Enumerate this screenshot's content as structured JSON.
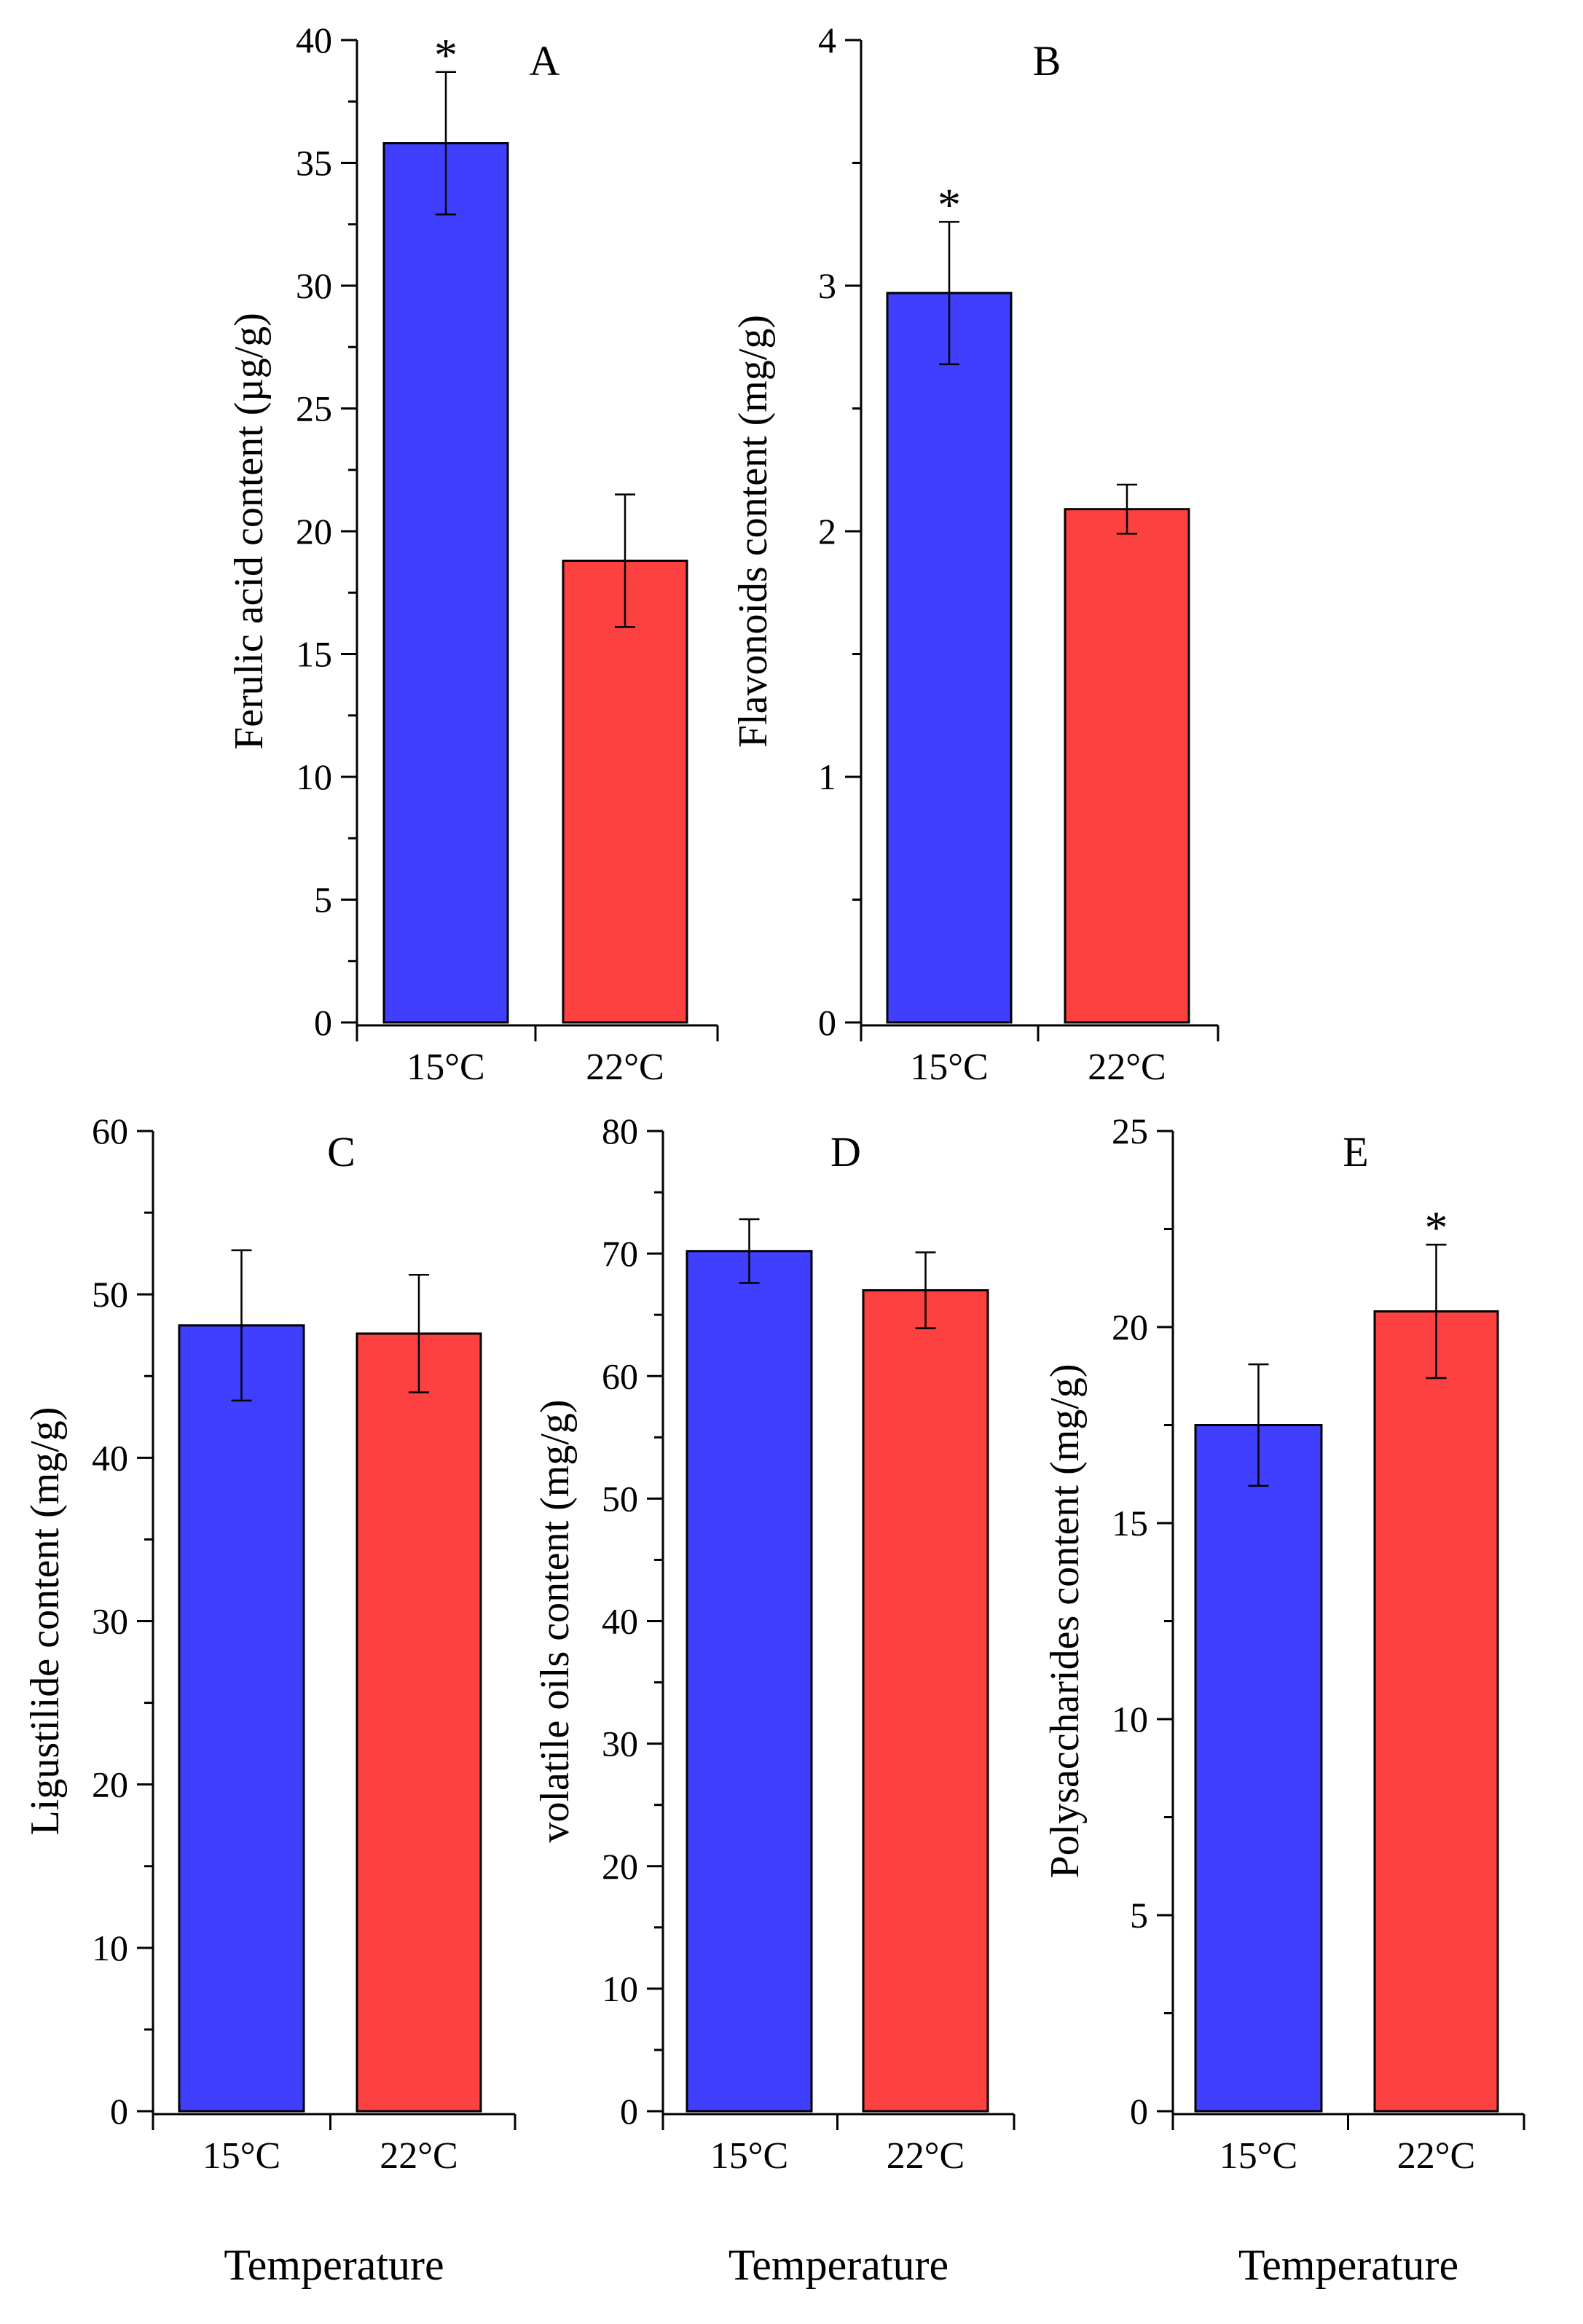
{
  "chart_data": [
    {
      "type": "bar",
      "panel": "A",
      "categories": [
        "15°C",
        "22°C"
      ],
      "values": [
        35.8,
        18.8
      ],
      "errors": [
        2.9,
        2.7
      ],
      "significance": [
        "*",
        ""
      ],
      "colors": [
        "#3f3ffd",
        "#fd4040"
      ],
      "ylabel": "Ferulic acid content (µg/g)",
      "xlabel": "",
      "ylim": [
        0,
        40
      ],
      "yticks": [
        0,
        5,
        10,
        15,
        20,
        25,
        30,
        35,
        40
      ]
    },
    {
      "type": "bar",
      "panel": "B",
      "categories": [
        "15°C",
        "22°C"
      ],
      "values": [
        2.97,
        2.09
      ],
      "errors": [
        0.29,
        0.1
      ],
      "significance": [
        "*",
        ""
      ],
      "colors": [
        "#3f3ffd",
        "#fd4040"
      ],
      "ylabel": "Flavonoids content (mg/g)",
      "xlabel": "",
      "ylim": [
        0,
        4
      ],
      "yticks": [
        0,
        1,
        2,
        3,
        4
      ]
    },
    {
      "type": "bar",
      "panel": "C",
      "categories": [
        "15°C",
        "22°C"
      ],
      "values": [
        48.1,
        47.6
      ],
      "errors": [
        4.6,
        3.6
      ],
      "significance": [
        "",
        ""
      ],
      "colors": [
        "#3f3ffd",
        "#fd4040"
      ],
      "ylabel": "Ligustilide content (mg/g)",
      "xlabel": "Temperature",
      "ylim": [
        0,
        60
      ],
      "yticks": [
        0,
        10,
        20,
        30,
        40,
        50,
        60
      ]
    },
    {
      "type": "bar",
      "panel": "D",
      "categories": [
        "15°C",
        "22°C"
      ],
      "values": [
        70.2,
        67.0
      ],
      "errors": [
        2.6,
        3.1
      ],
      "significance": [
        "",
        ""
      ],
      "colors": [
        "#3f3ffd",
        "#fd4040"
      ],
      "ylabel": "volatile oils content (mg/g)",
      "xlabel": "Temperature",
      "ylim": [
        0,
        80
      ],
      "yticks": [
        0,
        10,
        20,
        30,
        40,
        50,
        60,
        70,
        80
      ]
    },
    {
      "type": "bar",
      "panel": "E",
      "categories": [
        "15°C",
        "22°C"
      ],
      "values": [
        17.5,
        20.4
      ],
      "errors": [
        1.55,
        1.7
      ],
      "significance": [
        "",
        "*"
      ],
      "colors": [
        "#3f3ffd",
        "#fd4040"
      ],
      "ylabel": "Polysaccharides content (mg/g)",
      "xlabel": "Temperature",
      "ylim": [
        0,
        25
      ],
      "yticks": [
        0,
        5,
        10,
        15,
        20,
        25
      ]
    }
  ]
}
